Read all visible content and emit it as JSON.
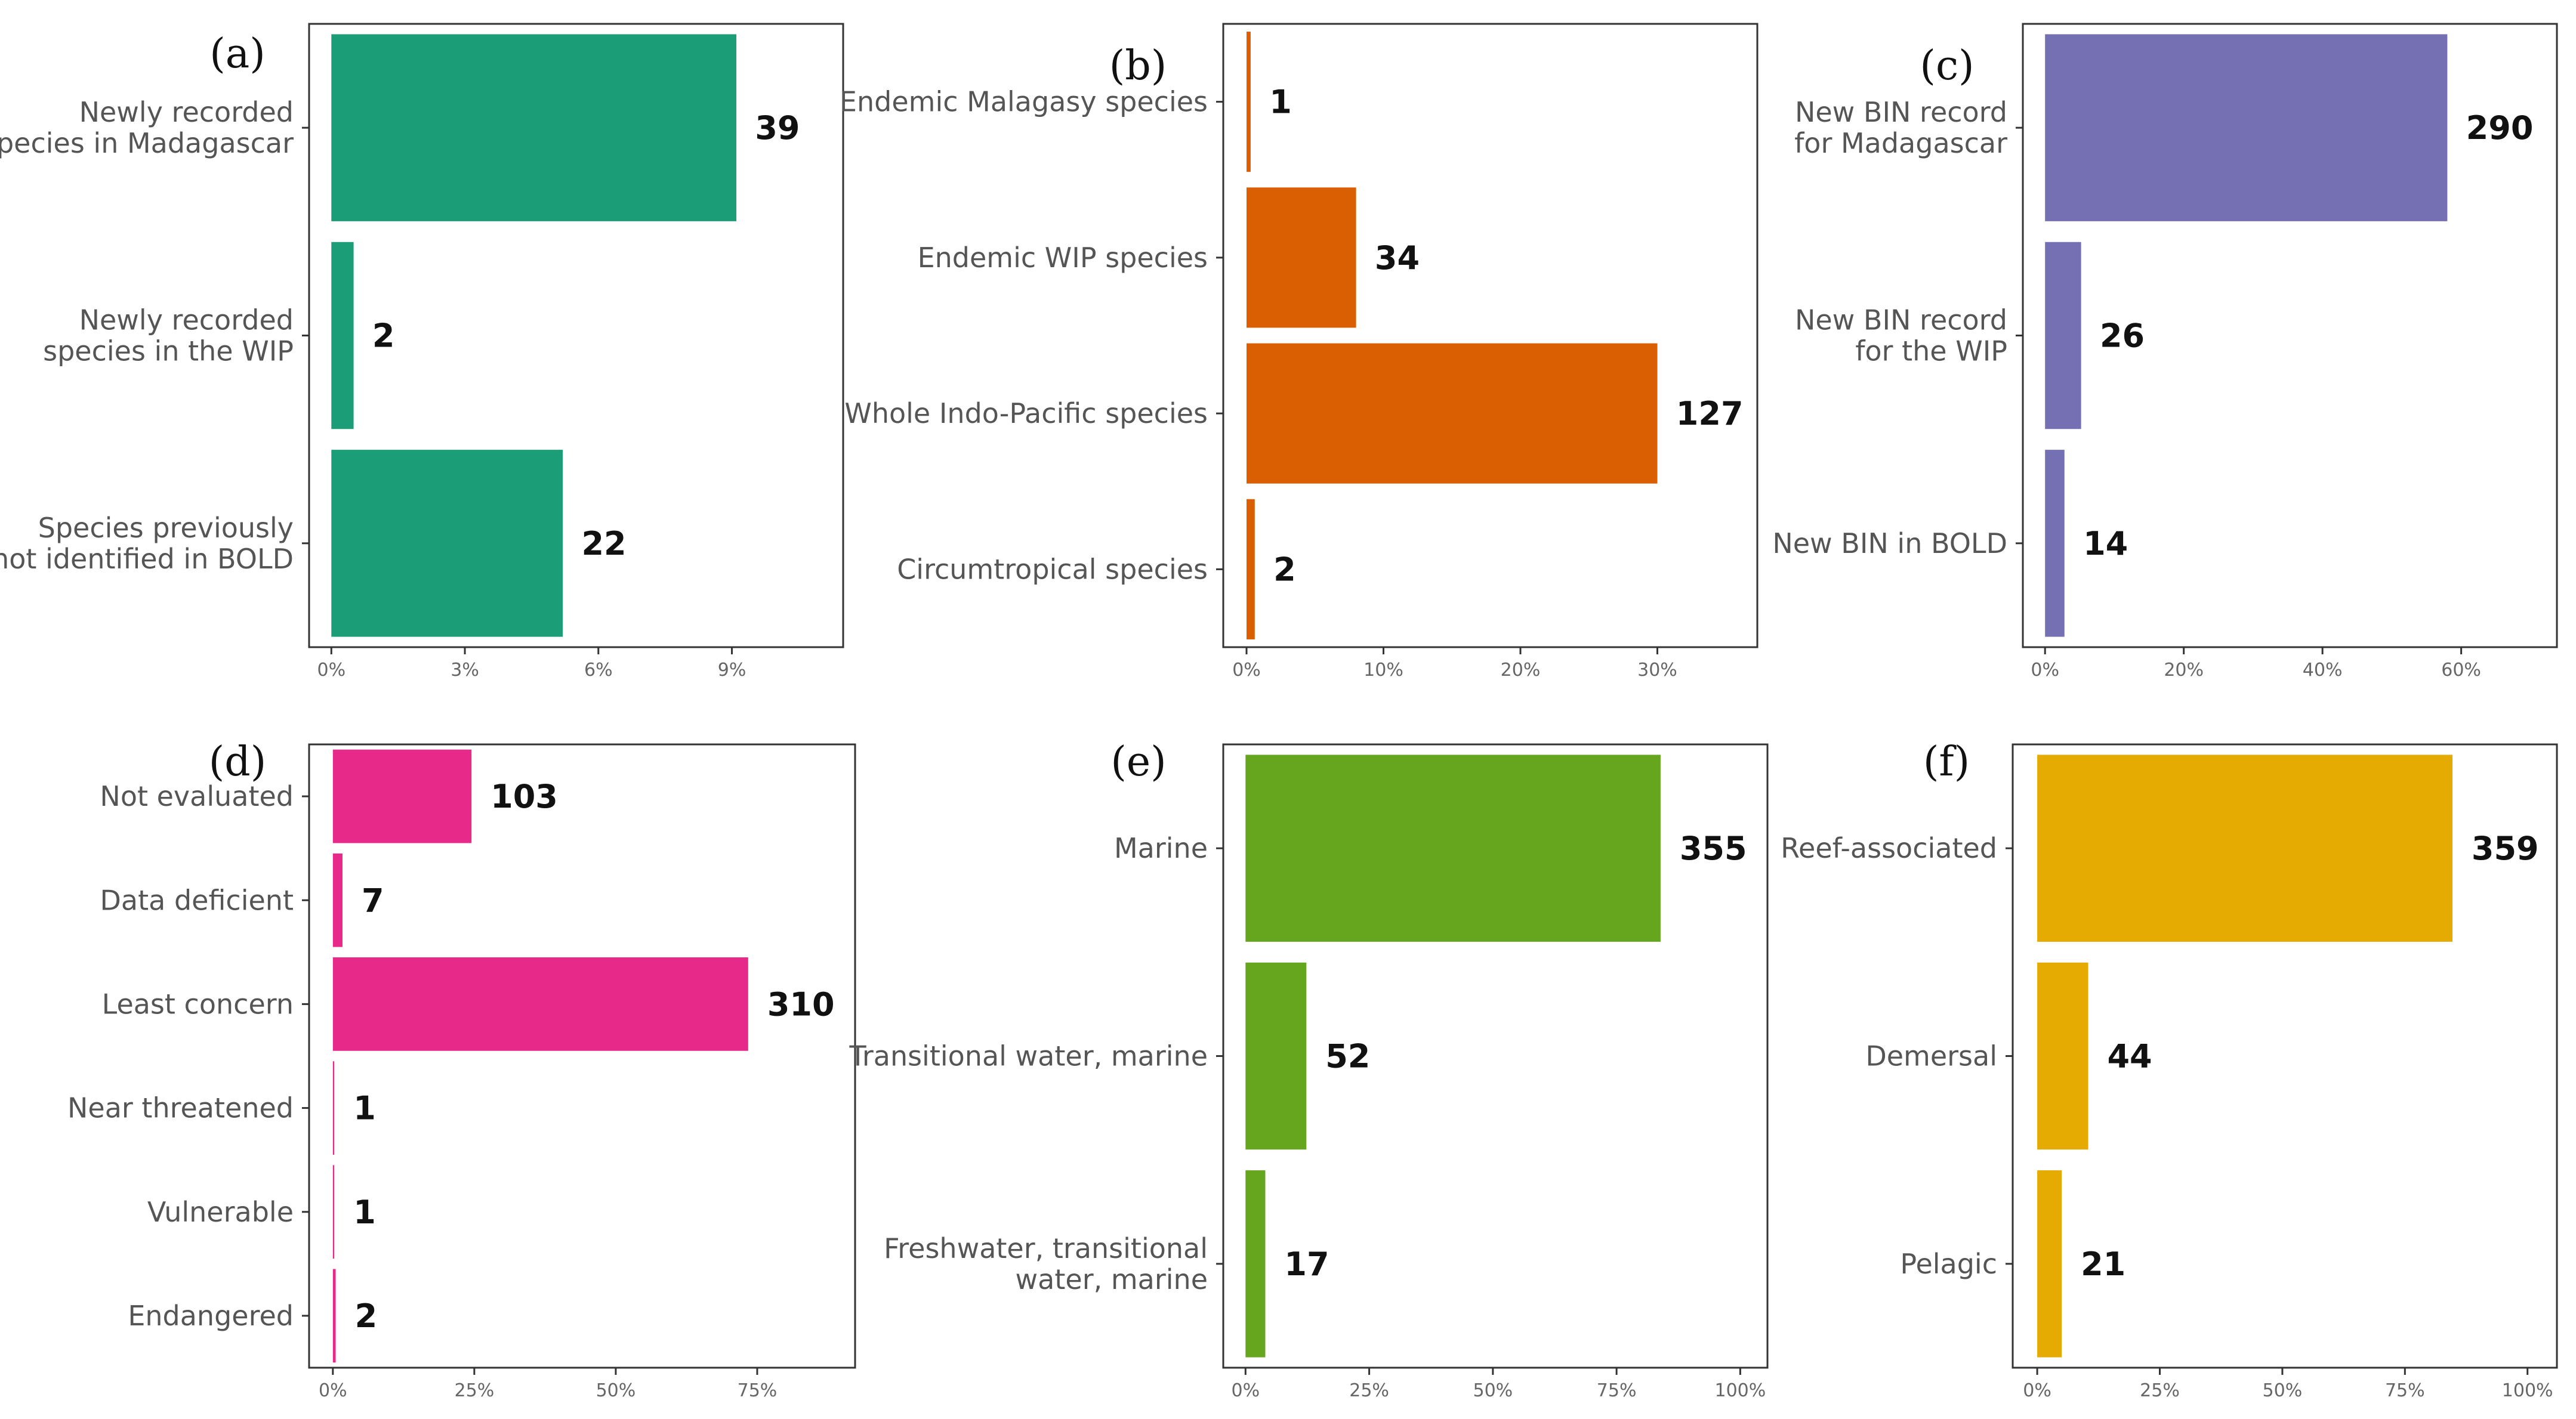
{
  "chart_data": [
    {
      "type": "bar",
      "panel": "(a)",
      "color": "#1b9e77",
      "categories": [
        "Newly recorded\nspecies in Madagascar",
        "Newly recorded\nspecies in the WIP",
        "Species previously\nnot identified in BOLD"
      ],
      "values": [
        9.1,
        0.5,
        5.2
      ],
      "data_labels": [
        "39",
        "2",
        "22"
      ],
      "xlim": [
        -0.5,
        11.5
      ],
      "xticks": [
        0,
        3,
        6,
        9
      ],
      "xtick_labels": [
        "0%",
        "3%",
        "6%",
        "9%"
      ]
    },
    {
      "type": "bar",
      "panel": "(b)",
      "color": "#d95f02",
      "categories": [
        "Endemic Malagasy species",
        "Endemic WIP species",
        "Whole Indo-Pacific species",
        "Circumtropical species"
      ],
      "values": [
        0.3,
        8.0,
        30.0,
        0.6
      ],
      "data_labels": [
        "1",
        "34",
        "127",
        "2"
      ],
      "xlim": [
        -1.7,
        37.3
      ],
      "xticks": [
        0,
        10,
        20,
        30
      ],
      "xtick_labels": [
        "0%",
        "10%",
        "20%",
        "30%"
      ]
    },
    {
      "type": "bar",
      "panel": "(c)",
      "color": "#7570b3",
      "categories": [
        "New BIN record\nfor Madagascar",
        "New BIN record\nfor the WIP",
        "New BIN in BOLD"
      ],
      "values": [
        58.0,
        5.2,
        2.8
      ],
      "data_labels": [
        "290",
        "26",
        "14"
      ],
      "xlim": [
        -3.2,
        73.8
      ],
      "xticks": [
        0,
        20,
        40,
        60
      ],
      "xtick_labels": [
        "0%",
        "20%",
        "40%",
        "60%"
      ]
    },
    {
      "type": "bar",
      "panel": "(d)",
      "color": "#e7298a",
      "categories": [
        "Not evaluated",
        "Data deficient",
        "Least concern",
        "Near threatened",
        "Vulnerable",
        "Endangered"
      ],
      "values": [
        24.5,
        1.7,
        73.4,
        0.25,
        0.25,
        0.5
      ],
      "data_labels": [
        "103",
        "7",
        "310",
        "1",
        "1",
        "2"
      ],
      "xlim": [
        -4.2,
        92.3
      ],
      "xticks": [
        0,
        25,
        50,
        75
      ],
      "xtick_labels": [
        "0%",
        "25%",
        "50%",
        "75%"
      ]
    },
    {
      "type": "bar",
      "panel": "(e)",
      "color": "#66a61e",
      "categories": [
        "Marine",
        "Transitional water, marine",
        "Freshwater, transitional\nwater, marine"
      ],
      "values": [
        83.9,
        12.3,
        4.0
      ],
      "data_labels": [
        "355",
        "52",
        "17"
      ],
      "xlim": [
        -4.5,
        105.5
      ],
      "xticks": [
        0,
        25,
        50,
        75,
        100
      ],
      "xtick_labels": [
        "0%",
        "25%",
        "50%",
        "75%",
        "100%"
      ]
    },
    {
      "type": "bar",
      "panel": "(f)",
      "color": "#e6ab02",
      "categories": [
        "Reef-associated",
        "Demersal",
        "Pelagic"
      ],
      "values": [
        84.7,
        10.4,
        5.0
      ],
      "data_labels": [
        "359",
        "44",
        "21"
      ],
      "xlim": [
        -5.0,
        106.0
      ],
      "xticks": [
        0,
        25,
        50,
        75,
        100
      ],
      "xtick_labels": [
        "0%",
        "25%",
        "50%",
        "75%",
        "100%"
      ]
    }
  ]
}
